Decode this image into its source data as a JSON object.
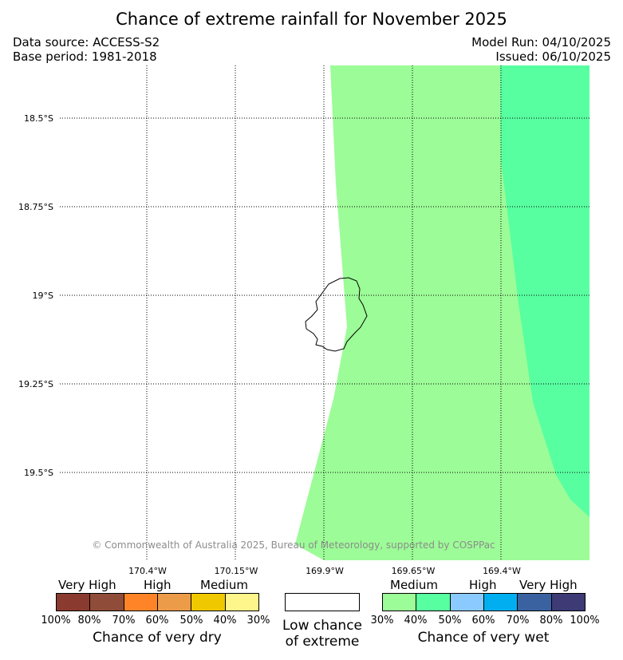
{
  "title": "Chance of extreme rainfall for November 2025",
  "data_source": "Data source: ACCESS-S2",
  "base_period": "Base period: 1981-2018",
  "model_run": "Model Run: 04/10/2025",
  "issued": "Issued: 06/10/2025",
  "map": {
    "lat_labels": [
      "18.5°S",
      "18.75°S",
      "19°S",
      "19.25°S",
      "19.5°S"
    ],
    "lon_labels": [
      "170.4°W",
      "170.15°W",
      "169.9°W",
      "169.65°W",
      "169.4°W"
    ],
    "copyright": "© Commonwealth of Australia 2025, Bureau of Meteorology, supported by COSPPac",
    "colors": {
      "background": "#ffffff",
      "wet_30_40": "#9cfc97",
      "wet_40_50": "#58ffa0"
    }
  },
  "legend": {
    "dry": {
      "categories": [
        "Very High",
        "High",
        "Medium"
      ],
      "ticks": [
        "100%",
        "80%",
        "70%",
        "60%",
        "50%",
        "40%",
        "30%"
      ],
      "colors": [
        "#8b3a2f",
        "#8f4c38",
        "#ff8427",
        "#ec9b48",
        "#f0c800",
        "#fef68a"
      ],
      "caption": "Chance of very dry"
    },
    "neutral": {
      "caption_line1": "Low chance",
      "caption_line2": "of extreme",
      "color": "#ffffff"
    },
    "wet": {
      "categories": [
        "Medium",
        "High",
        "Very High"
      ],
      "ticks": [
        "30%",
        "40%",
        "50%",
        "60%",
        "70%",
        "80%",
        "100%"
      ],
      "colors": [
        "#9cfc97",
        "#58ffa0",
        "#8bcafe",
        "#01aff0",
        "#3a62a1",
        "#3d3a75"
      ],
      "caption": "Chance of very wet"
    }
  }
}
